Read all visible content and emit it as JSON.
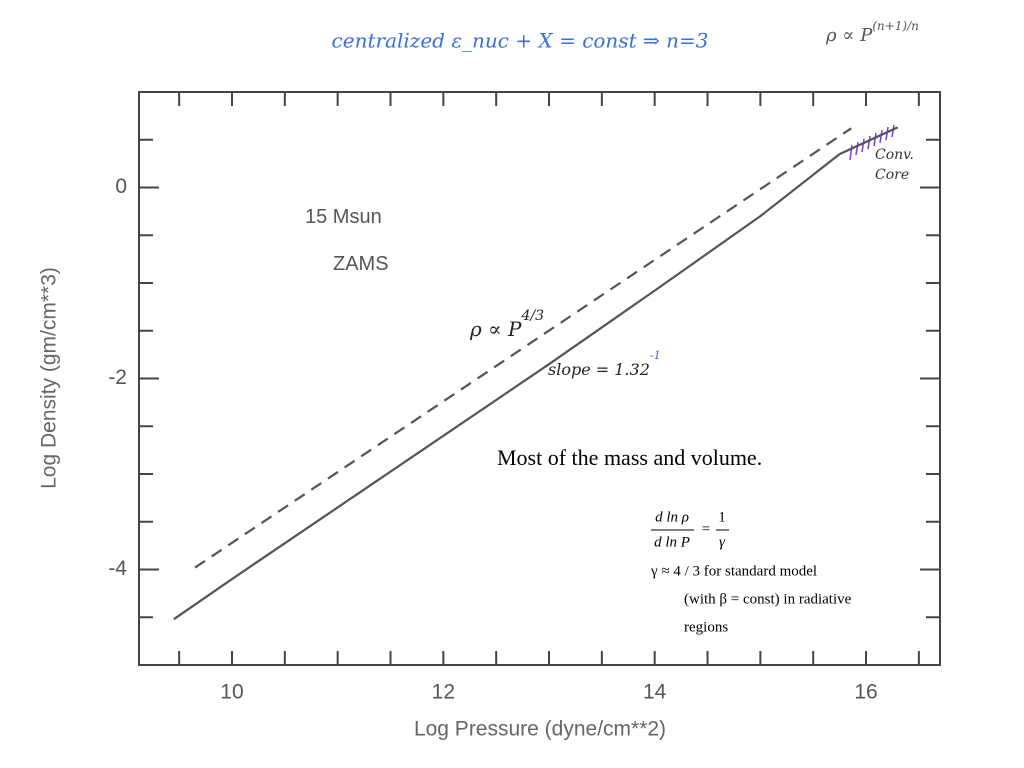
{
  "chart_data": {
    "type": "line",
    "title": "centralized ε_nuc + X = const ⇒ n=3",
    "subtitle": {
      "text": "ρ ∝ P",
      "sup": "(n+1)/n"
    },
    "xlabel": "Log Pressure (dyne/cm**2)",
    "ylabel": "Log Density (gm/cm**3)",
    "xlim": [
      9.12,
      16.7
    ],
    "ylim": [
      -5,
      1
    ],
    "xticks": [
      10,
      12,
      14,
      16
    ],
    "yticks": [
      0,
      -2,
      -4
    ],
    "xminorticks": [
      9.5,
      10.5,
      11,
      11.5,
      12.5,
      13,
      13.5,
      14.5,
      15,
      15.5,
      16.5
    ],
    "yminorticks": [
      0.5,
      -0.5,
      -1,
      -1.5,
      -2.5,
      -3,
      -3.5,
      -4.5
    ],
    "series": [
      {
        "color": "#555555",
        "dash": false,
        "x": [
          9.45,
          10,
          11,
          12,
          13,
          14,
          15,
          15.75,
          16.3
        ],
        "values": [
          -4.52,
          -4.1,
          -3.35,
          -2.6,
          -1.85,
          -1.08,
          -0.3,
          0.35,
          0.63
        ]
      },
      {
        "color": "#555555",
        "dash": true,
        "x": [
          9.65,
          15.86
        ],
        "values": [
          -3.98,
          0.62
        ]
      }
    ],
    "annotations": [
      {
        "text": "15 Msun"
      },
      {
        "text": "ZAMS"
      },
      {
        "text": "ρ ∝ P",
        "sup": "4/3"
      },
      {
        "text": "slope = 1.32",
        "sup": "-1"
      },
      {
        "text": "Conv."
      },
      {
        "text": "Core"
      }
    ]
  },
  "overlay": {
    "note": "Most of the mass and volume.",
    "equation": {
      "num_left": "d ln ρ",
      "den_left": "d ln P",
      "eq": "=",
      "num_right": "1",
      "den_right": "γ"
    },
    "lines": [
      "γ ≈ 4 / 3   for standard model",
      "(with β = const) in radiative",
      "regions"
    ]
  }
}
